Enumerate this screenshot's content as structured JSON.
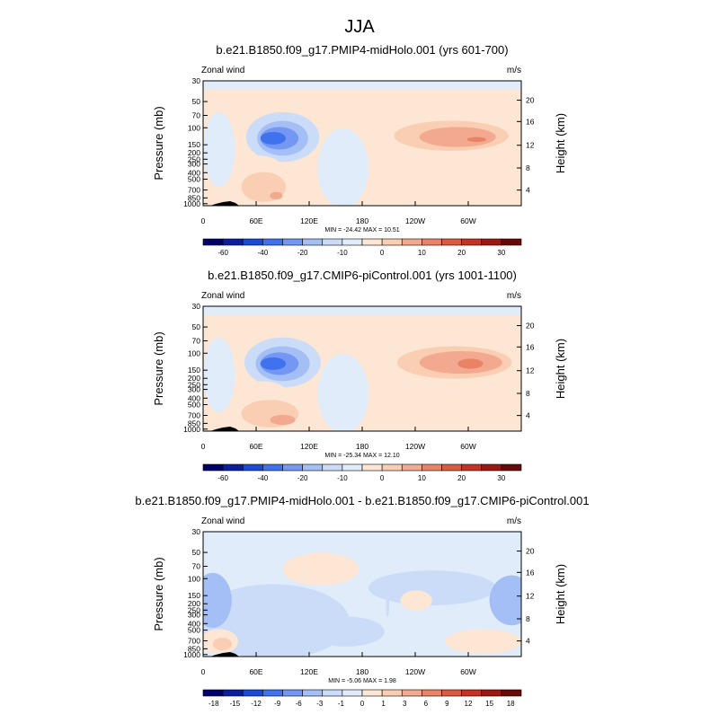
{
  "page": {
    "title": "JJA"
  },
  "chart_data": [
    {
      "type": "heatmap",
      "title": "b.e21.B1850.f09_g17.PMIP4-midHolo.001 (yrs 601-700)",
      "variable_label": "Zonal wind",
      "units_label": "m/s",
      "ylabel": "Pressure (mb)",
      "y2label": "Height (km)",
      "x_ticks": [
        "0",
        "60E",
        "120E",
        "180",
        "120W",
        "60W"
      ],
      "pressure_ticks": [
        "30",
        "50",
        "70",
        "100",
        "150",
        "200",
        "250",
        "300",
        "400",
        "500",
        "700",
        "850",
        "1000"
      ],
      "height_ticks": [
        "20",
        "16",
        "12",
        "8",
        "4"
      ],
      "stats": "MIN = -24.42   MAX =  10.51",
      "colorbar_ticks": [
        "-60",
        "-40",
        "-20",
        "-10",
        "0",
        "10",
        "20",
        "30"
      ],
      "colors": [
        "#00006a",
        "#0a1fa0",
        "#1b4ad6",
        "#3f72ec",
        "#7397f2",
        "#a4bff6",
        "#cbdcf8",
        "#e1ecfa",
        "#fde6d4",
        "#f9ceb2",
        "#f2a990",
        "#ea8266",
        "#dc5a40",
        "#c83223",
        "#9e1712",
        "#6a0808"
      ],
      "blobs": [
        {
          "cx": 0.25,
          "cy": 0.45,
          "rx": 0.115,
          "ry": 0.2,
          "level": -10
        },
        {
          "cx": 0.25,
          "cy": 0.46,
          "rx": 0.08,
          "ry": 0.14,
          "level": -15
        },
        {
          "cx": 0.24,
          "cy": 0.46,
          "rx": 0.06,
          "ry": 0.09,
          "level": -20
        },
        {
          "cx": 0.22,
          "cy": 0.46,
          "rx": 0.04,
          "ry": 0.05,
          "level": -25
        },
        {
          "cx": 0.18,
          "cy": 0.8,
          "rx": 0.09,
          "ry": 0.2,
          "level": 2
        },
        {
          "cx": 0.19,
          "cy": 0.85,
          "rx": 0.07,
          "ry": 0.12,
          "level": 5
        },
        {
          "cx": 0.23,
          "cy": 0.92,
          "rx": 0.02,
          "ry": 0.03,
          "level": 8
        },
        {
          "cx": 0.76,
          "cy": 0.4,
          "rx": 0.22,
          "ry": 0.18,
          "level": 2
        },
        {
          "cx": 0.78,
          "cy": 0.44,
          "rx": 0.18,
          "ry": 0.12,
          "level": 5
        },
        {
          "cx": 0.8,
          "cy": 0.45,
          "rx": 0.12,
          "ry": 0.08,
          "level": 8
        },
        {
          "cx": 0.86,
          "cy": 0.47,
          "rx": 0.03,
          "ry": 0.02,
          "level": 10
        }
      ]
    },
    {
      "type": "heatmap",
      "title": "b.e21.B1850.f09_g17.CMIP6-piControl.001 (yrs 1001-1100)",
      "variable_label": "Zonal wind",
      "units_label": "m/s",
      "ylabel": "Pressure (mb)",
      "y2label": "Height (km)",
      "x_ticks": [
        "0",
        "60E",
        "120E",
        "180",
        "120W",
        "60W"
      ],
      "pressure_ticks": [
        "30",
        "50",
        "70",
        "100",
        "150",
        "200",
        "250",
        "300",
        "400",
        "500",
        "700",
        "850",
        "1000"
      ],
      "height_ticks": [
        "20",
        "16",
        "12",
        "8",
        "4"
      ],
      "stats": "MIN = -25.34   MAX =  12.10",
      "colorbar_ticks": [
        "-60",
        "-40",
        "-20",
        "-10",
        "0",
        "10",
        "20",
        "30"
      ],
      "colors": [
        "#00006a",
        "#0a1fa0",
        "#1b4ad6",
        "#3f72ec",
        "#7397f2",
        "#a4bff6",
        "#cbdcf8",
        "#e1ecfa",
        "#fde6d4",
        "#f9ceb2",
        "#f2a990",
        "#ea8266",
        "#dc5a40",
        "#c83223",
        "#9e1712",
        "#6a0808"
      ],
      "blobs": [
        {
          "cx": 0.25,
          "cy": 0.45,
          "rx": 0.12,
          "ry": 0.2,
          "level": -10
        },
        {
          "cx": 0.25,
          "cy": 0.46,
          "rx": 0.085,
          "ry": 0.14,
          "level": -15
        },
        {
          "cx": 0.24,
          "cy": 0.46,
          "rx": 0.06,
          "ry": 0.09,
          "level": -20
        },
        {
          "cx": 0.22,
          "cy": 0.46,
          "rx": 0.04,
          "ry": 0.05,
          "level": -25
        },
        {
          "cx": 0.19,
          "cy": 0.8,
          "rx": 0.1,
          "ry": 0.2,
          "level": 2
        },
        {
          "cx": 0.21,
          "cy": 0.86,
          "rx": 0.09,
          "ry": 0.11,
          "level": 5
        },
        {
          "cx": 0.25,
          "cy": 0.91,
          "rx": 0.04,
          "ry": 0.04,
          "level": 8
        },
        {
          "cx": 0.77,
          "cy": 0.44,
          "rx": 0.22,
          "ry": 0.2,
          "level": 2
        },
        {
          "cx": 0.79,
          "cy": 0.45,
          "rx": 0.18,
          "ry": 0.13,
          "level": 5
        },
        {
          "cx": 0.81,
          "cy": 0.45,
          "rx": 0.13,
          "ry": 0.09,
          "level": 8
        },
        {
          "cx": 0.84,
          "cy": 0.46,
          "rx": 0.04,
          "ry": 0.04,
          "level": 10
        }
      ]
    },
    {
      "type": "heatmap",
      "title": "b.e21.B1850.f09_g17.PMIP4-midHolo.001 - b.e21.B1850.f09_g17.CMIP6-piControl.001",
      "variable_label": "Zonal wind",
      "units_label": "m/s",
      "ylabel": "Pressure (mb)",
      "y2label": "Height (km)",
      "x_ticks": [
        "0",
        "60E",
        "120E",
        "180",
        "120W",
        "60W"
      ],
      "pressure_ticks": [
        "30",
        "50",
        "70",
        "100",
        "150",
        "200",
        "250",
        "300",
        "400",
        "500",
        "700",
        "850",
        "1000"
      ],
      "height_ticks": [
        "20",
        "16",
        "12",
        "8",
        "4"
      ],
      "stats": "MIN = -5.06   MAX =  1.98",
      "colorbar_ticks": [
        "-18",
        "-15",
        "-12",
        "-9",
        "-6",
        "-3",
        "-1",
        "0",
        "1",
        "3",
        "6",
        "9",
        "12",
        "15",
        "18"
      ],
      "colors": [
        "#00006a",
        "#0a1fa0",
        "#1b4ad6",
        "#3f72ec",
        "#7397f2",
        "#a4bff6",
        "#cbdcf8",
        "#e1ecfa",
        "#fde6d4",
        "#f9ceb2",
        "#f2a990",
        "#ea8266",
        "#dc5a40",
        "#c83223",
        "#9e1712",
        "#6a0808"
      ],
      "blobs": [
        {
          "cx": 0.22,
          "cy": 0.72,
          "rx": 0.24,
          "ry": 0.3,
          "level": -1
        },
        {
          "cx": 0.03,
          "cy": 0.55,
          "rx": 0.06,
          "ry": 0.22,
          "level": -2
        },
        {
          "cx": 0.72,
          "cy": 0.45,
          "rx": 0.2,
          "ry": 0.14,
          "level": -1
        },
        {
          "cx": 0.97,
          "cy": 0.55,
          "rx": 0.07,
          "ry": 0.2,
          "level": -2
        },
        {
          "cx": 0.45,
          "cy": 0.8,
          "rx": 0.12,
          "ry": 0.12,
          "level": -1
        },
        {
          "cx": 0.37,
          "cy": 0.3,
          "rx": 0.12,
          "ry": 0.13,
          "level": 0.5
        },
        {
          "cx": 0.67,
          "cy": 0.55,
          "rx": 0.05,
          "ry": 0.08,
          "level": 0.5
        },
        {
          "cx": 0.88,
          "cy": 0.88,
          "rx": 0.12,
          "ry": 0.1,
          "level": 0.5
        },
        {
          "cx": 0.05,
          "cy": 0.88,
          "rx": 0.06,
          "ry": 0.1,
          "level": 0.5
        },
        {
          "cx": 0.06,
          "cy": 0.9,
          "rx": 0.03,
          "ry": 0.05,
          "level": 1.2
        },
        {
          "cx": 0.58,
          "cy": 0.58,
          "rx": 0.005,
          "ry": 0.1,
          "level": -1
        }
      ]
    }
  ]
}
